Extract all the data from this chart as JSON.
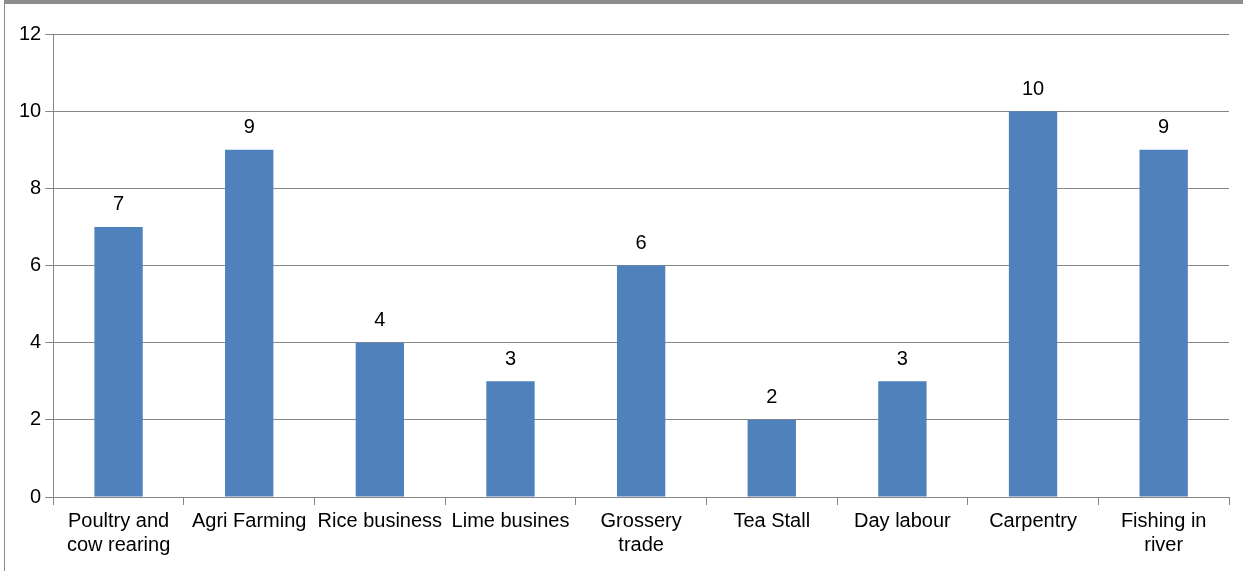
{
  "chart_data": {
    "type": "bar",
    "categories": [
      "Poultry and cow rearing",
      "Agri Farming",
      "Rice business",
      "Lime busines",
      "Grossery trade",
      "Tea Stall",
      "Day labour",
      "Carpentry",
      "Fishing in river"
    ],
    "values": [
      7,
      9,
      4,
      3,
      6,
      2,
      3,
      10,
      9
    ],
    "color": "#4f81bd",
    "ylim": [
      0,
      12
    ],
    "yticks": [
      0,
      2,
      4,
      6,
      8,
      10,
      12
    ],
    "grid": "y",
    "data_labels": true,
    "legend": false
  }
}
